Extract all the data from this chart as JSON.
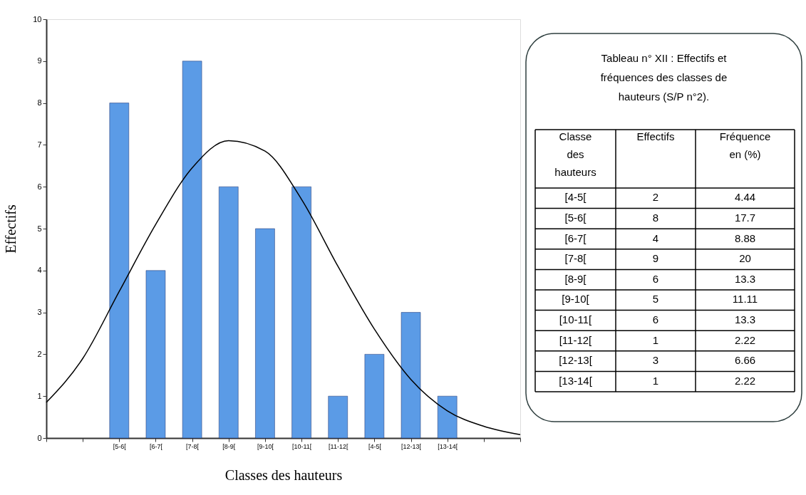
{
  "chart_data": [
    {
      "type": "bar",
      "xlabel": "Classes des hauteurs",
      "ylabel": "Effectifs",
      "ylim": [
        0,
        10
      ],
      "yticks": [
        0,
        1,
        2,
        3,
        4,
        5,
        6,
        7,
        8,
        9,
        10
      ],
      "categories": [
        null,
        null,
        "[5-6[",
        "[6-7[",
        "[7-8[",
        "[8-9[",
        "[9-10[",
        "[10-11[",
        "[11-12[",
        "[4-5[",
        "[12-13[",
        "[13-14[",
        null,
        null
      ],
      "series": [
        {
          "type": "bar",
          "color": "#5b9be6",
          "values": [
            null,
            null,
            8,
            4,
            9,
            6,
            5,
            6,
            1,
            2,
            3,
            1,
            null,
            null
          ]
        },
        {
          "type": "line",
          "color": "#000000",
          "values": [
            0.85,
            1.9,
            3.5,
            5.1,
            6.45,
            7.1,
            6.85,
            5.7,
            4.1,
            2.6,
            1.4,
            0.65,
            0.28,
            0.08
          ]
        }
      ],
      "grid": false
    },
    {
      "type": "other",
      "title": "Tableau n°  XII : Effectifs et\nfréquences des classes de\nhauteurs (S/P n°2).",
      "annotations": [
        "Classe\ndes\nhauteurs",
        "Effectifs",
        "Fréquence\nen (%)",
        "[4-5[",
        "2",
        "4.44",
        "[5-6[",
        "8",
        "17.7",
        "[6-7[",
        "4",
        "8.88",
        "[7-8[",
        "9",
        "20",
        "[8-9[",
        "6",
        "13.3",
        "[9-10[",
        "5",
        "11.11",
        "[10-11[",
        "6",
        "13.3",
        "[11-12[",
        "1",
        "2.22",
        "[12-13[",
        "3",
        "6.66",
        "[13-14[",
        "1",
        "2.22"
      ]
    }
  ]
}
